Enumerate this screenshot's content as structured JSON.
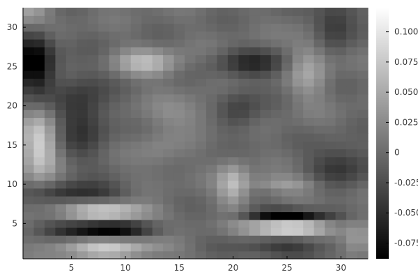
{
  "chart_data": {
    "type": "heatmap",
    "title": "",
    "xlabel": "",
    "ylabel": "",
    "xlim": [
      0.5,
      32.5
    ],
    "ylim": [
      0.5,
      32.5
    ],
    "x_ticks": [
      "5",
      "10",
      "15",
      "20",
      "25",
      "30"
    ],
    "y_ticks": [
      "5",
      "10",
      "15",
      "20",
      "25",
      "30"
    ],
    "colormap": "grays",
    "color_min": -0.088,
    "color_max": 0.12,
    "colorbar_ticks": [
      "0.100",
      "0.075",
      "0.050",
      "0.025",
      "0",
      "-0.025",
      "-0.050",
      "-0.075"
    ],
    "grid": false,
    "grid_size": [
      32,
      32
    ],
    "features": [
      {
        "x": 1.5,
        "y": 25.5,
        "sx": 1.3,
        "sy": 3,
        "a": -0.09
      },
      {
        "x": 2,
        "y": 15,
        "sx": 1.2,
        "sy": 3.2,
        "a": 0.08
      },
      {
        "x": 1,
        "y": 32,
        "sx": 1.5,
        "sy": 1.5,
        "a": 0.05
      },
      {
        "x": 8.5,
        "y": 6.5,
        "sx": 2.6,
        "sy": 0.8,
        "a": 0.09
      },
      {
        "x": 8,
        "y": 4.3,
        "sx": 3,
        "sy": 0.7,
        "a": -0.1
      },
      {
        "x": 8.5,
        "y": 1.8,
        "sx": 3.5,
        "sy": 0.9,
        "a": 0.07
      },
      {
        "x": 5.5,
        "y": 9,
        "sx": 3,
        "sy": 0.9,
        "a": -0.05
      },
      {
        "x": 12,
        "y": 25.5,
        "sx": 2.2,
        "sy": 1.2,
        "a": 0.06
      },
      {
        "x": 6,
        "y": 19,
        "sx": 1.8,
        "sy": 4,
        "a": -0.05
      },
      {
        "x": 15.5,
        "y": 19,
        "sx": 3,
        "sy": 1.5,
        "a": 0.025
      },
      {
        "x": 20,
        "y": 10,
        "sx": 1,
        "sy": 2,
        "a": 0.06
      },
      {
        "x": 25,
        "y": 4.6,
        "sx": 2.6,
        "sy": 0.7,
        "a": 0.13
      },
      {
        "x": 25,
        "y": 6,
        "sx": 2.6,
        "sy": 0.6,
        "a": -0.12
      },
      {
        "x": 25,
        "y": 10,
        "sx": 2.5,
        "sy": 0.8,
        "a": 0.04
      },
      {
        "x": 25,
        "y": 1.8,
        "sx": 3.5,
        "sy": 0.9,
        "a": -0.04
      },
      {
        "x": 22,
        "y": 25.5,
        "sx": 2.5,
        "sy": 1.2,
        "a": -0.05
      },
      {
        "x": 27,
        "y": 25,
        "sx": 1.3,
        "sy": 3,
        "a": 0.045
      },
      {
        "x": 29.5,
        "y": 30.5,
        "sx": 1.5,
        "sy": 2,
        "a": -0.05
      },
      {
        "x": 30,
        "y": 12.5,
        "sx": 2,
        "sy": 2,
        "a": -0.045
      },
      {
        "x": 31.5,
        "y": 3,
        "sx": 1,
        "sy": 2,
        "a": 0.04
      },
      {
        "x": 20.5,
        "y": 19.5,
        "sx": 1.5,
        "sy": 2,
        "a": -0.04
      },
      {
        "x": 13,
        "y": 14,
        "sx": 1.5,
        "sy": 2,
        "a": 0.02
      }
    ]
  }
}
